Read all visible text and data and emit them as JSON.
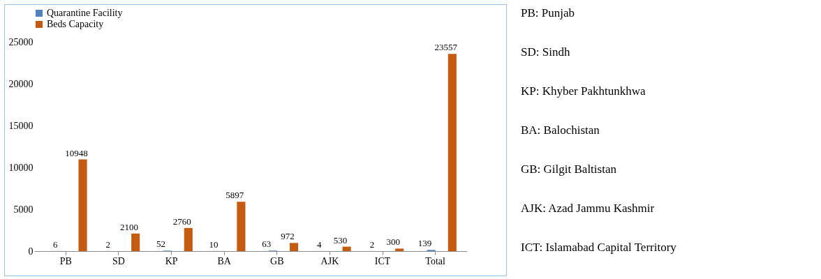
{
  "chart_data": {
    "type": "bar",
    "categories": [
      "PB",
      "SD",
      "KP",
      "BA",
      "GB",
      "AJK",
      "ICT",
      "Total"
    ],
    "series": [
      {
        "name": "Quarantine Facility",
        "color": "#4f81bd",
        "values": [
          6,
          2,
          52,
          10,
          63,
          4,
          2,
          139
        ]
      },
      {
        "name": "Beds Capacity",
        "color": "#c55a11",
        "values": [
          10948,
          2100,
          2760,
          5897,
          972,
          530,
          300,
          23557
        ]
      }
    ],
    "ylim": [
      0,
      25000
    ],
    "yticks": [
      0,
      5000,
      10000,
      15000,
      20000,
      25000
    ],
    "grid": false,
    "legend": "top",
    "data_labels": true,
    "annotations": [
      "PB: Punjab",
      "SD: Sindh",
      "KP: Khyber Pakhtunkhwa",
      "BA: Balochistan",
      "GB: Gilgit Baltistan",
      "AJK: Azad Jammu Kashmir",
      "ICT: Islamabad Capital Territory"
    ]
  }
}
